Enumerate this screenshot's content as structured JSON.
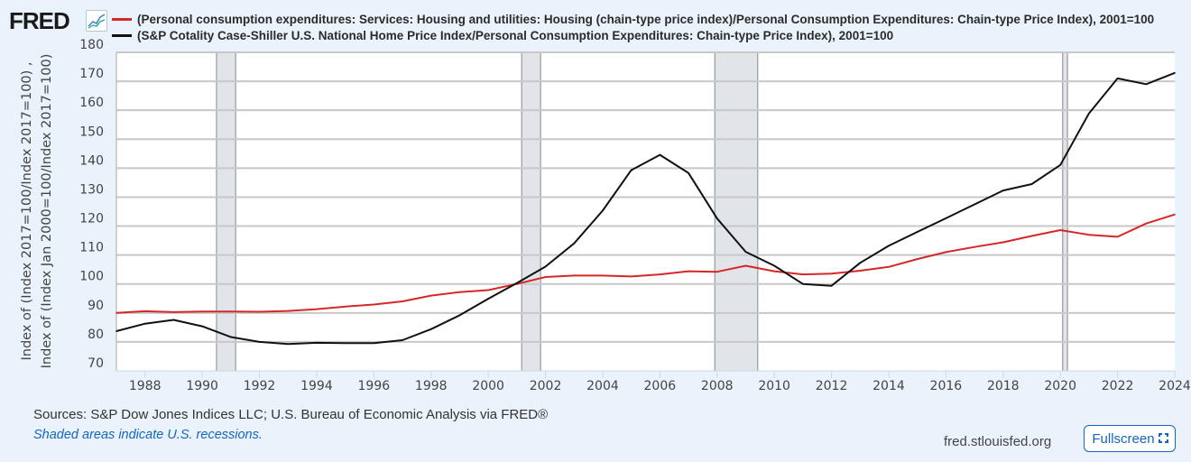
{
  "header": {
    "logo": "FRED",
    "logo_icon": "chart-line-icon"
  },
  "legend": [
    {
      "label": "(Personal consumption expenditures: Services: Housing and utilities: Housing (chain-type price index)/Personal Consumption Expenditures: Chain-type Price Index), 2001=100",
      "color": "#d62728"
    },
    {
      "label": "(S&P Cotality Case-Shiller U.S. National Home Price Index/Personal Consumption Expenditures: Chain-type Price Index), 2001=100",
      "color": "#111111"
    }
  ],
  "footer": {
    "sources": "Sources: S&P Dow Jones Indices LLC; U.S. Bureau of Economic Analysis via FRED®",
    "note": "Shaded areas indicate U.S. recessions.",
    "site": "fred.stlouisfed.org",
    "fullscreen_label": "Fullscreen"
  },
  "chart_data": {
    "type": "line",
    "title": "",
    "xlabel": "",
    "ylabel": "Index of (Index 2017=100/Index 2017=100) , Index of (Index Jan 2000=100/Index 2017=100)",
    "ylabel_lines": [
      "Index of (Index 2017=100/Index 2017=100) ,",
      "Index of (Index Jan 2000=100/Index 2017=100)"
    ],
    "xlim": [
      1987,
      2024
    ],
    "ylim": [
      70,
      180
    ],
    "grid": true,
    "legend_position": "top",
    "x_ticks": [
      1988,
      1990,
      1992,
      1994,
      1996,
      1998,
      2000,
      2002,
      2004,
      2006,
      2008,
      2010,
      2012,
      2014,
      2016,
      2018,
      2020,
      2022,
      2024
    ],
    "y_ticks": [
      70,
      80,
      90,
      100,
      110,
      120,
      130,
      140,
      150,
      160,
      170,
      180
    ],
    "x": [
      1987,
      1988,
      1989,
      1990,
      1991,
      1992,
      1993,
      1994,
      1995,
      1996,
      1997,
      1998,
      1999,
      2000,
      2001,
      2002,
      2003,
      2004,
      2005,
      2006,
      2007,
      2008,
      2009,
      2010,
      2011,
      2012,
      2013,
      2014,
      2015,
      2016,
      2017,
      2018,
      2019,
      2020,
      2021,
      2022,
      2023,
      2024
    ],
    "series": [
      {
        "name": "(Personal consumption expenditures: Services: Housing and utilities: Housing (chain-type price index)/Personal Consumption Expenditures: Chain-type Price Index), 2001=100",
        "color": "#d62728",
        "values": [
          90.0,
          90.6,
          90.3,
          90.5,
          90.5,
          90.4,
          90.7,
          91.3,
          92.2,
          92.9,
          94.0,
          96.0,
          97.2,
          97.9,
          100.0,
          102.4,
          102.9,
          102.9,
          102.6,
          103.3,
          104.4,
          104.2,
          106.3,
          104.4,
          103.3,
          103.6,
          104.6,
          105.9,
          108.6,
          111.0,
          112.8,
          114.4,
          116.6,
          118.6,
          117.0,
          116.3,
          120.9,
          124.0
        ]
      },
      {
        "name": "(S&P Cotality Case-Shiller U.S. National Home Price Index/Personal Consumption Expenditures: Chain-type Price Index), 2001=100",
        "color": "#111111",
        "values": [
          83.7,
          86.3,
          87.6,
          85.4,
          81.7,
          80.0,
          79.3,
          79.7,
          79.6,
          79.6,
          80.6,
          84.4,
          89.2,
          94.9,
          100.3,
          106.0,
          114.0,
          125.3,
          139.3,
          144.6,
          138.3,
          122.6,
          111.1,
          106.3,
          100.0,
          99.4,
          107.3,
          113.2,
          118.0,
          122.7,
          127.5,
          132.3,
          134.5,
          141.1,
          158.9,
          171.0,
          169.0,
          172.9
        ]
      }
    ],
    "recessions": [
      {
        "start": 1990.5,
        "end": 1991.17
      },
      {
        "start": 2001.17,
        "end": 2001.83
      },
      {
        "start": 2007.92,
        "end": 2009.42
      },
      {
        "start": 2020.08,
        "end": 2020.25
      }
    ]
  }
}
